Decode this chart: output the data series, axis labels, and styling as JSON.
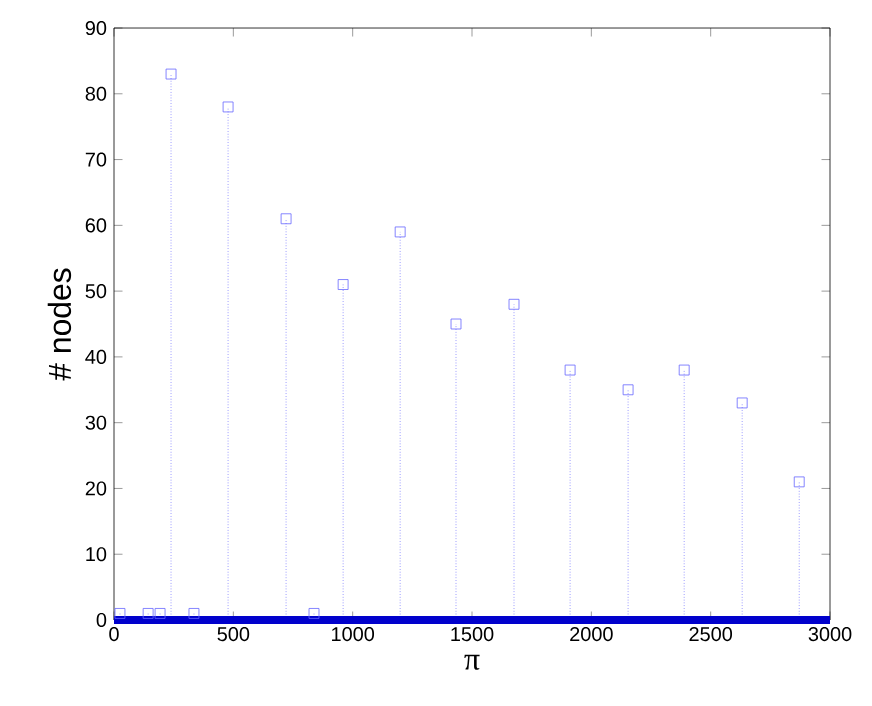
{
  "chart_data": {
    "type": "lollipop",
    "xlabel": "π",
    "ylabel": "# nodes",
    "xlim": [
      0,
      3000
    ],
    "ylim": [
      0,
      90
    ],
    "xticks": [
      0,
      500,
      1000,
      1500,
      2000,
      2500,
      3000
    ],
    "yticks": [
      0,
      10,
      20,
      30,
      40,
      50,
      60,
      70,
      80,
      90
    ],
    "marker": "square",
    "line_style": "dotted",
    "series": [
      {
        "color": "#6666ff",
        "x": [
          25,
          143,
          193,
          239,
          335,
          478,
          721,
          838,
          960,
          1199,
          1433,
          1676,
          1911,
          2154,
          2389,
          2632,
          2871
        ],
        "values": [
          1,
          1,
          1,
          83,
          1,
          78,
          61,
          1,
          51,
          59,
          45,
          48,
          38,
          35,
          38,
          33,
          21
        ]
      },
      {
        "type": "line",
        "line_style": "solid",
        "marker": "none",
        "color": "#0000cc",
        "x": [
          0,
          3000
        ],
        "values": [
          0,
          0
        ]
      }
    ]
  }
}
